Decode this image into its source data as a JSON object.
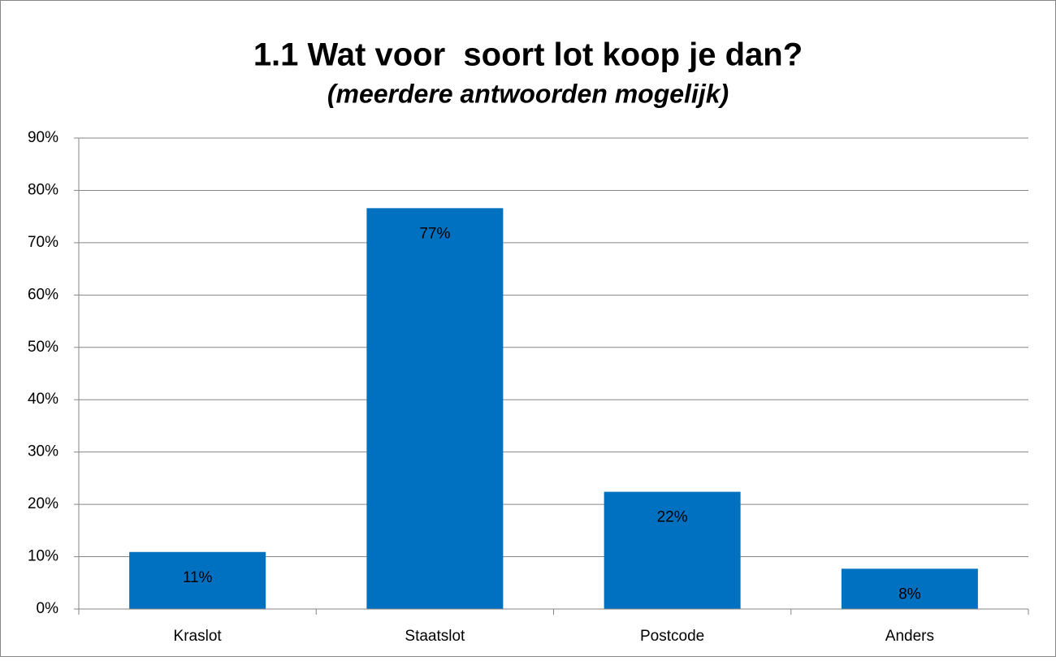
{
  "chart_data": {
    "type": "bar",
    "title": "1.1 Wat voor  soort lot koop je dan?",
    "subtitle": "(meerdere antwoorden mogelijk)",
    "categories": [
      "Kraslot",
      "Staatslot",
      "Postcode",
      "Anders"
    ],
    "values": [
      10.9,
      76.6,
      22.4,
      7.7
    ],
    "value_labels": [
      "11%",
      "77%",
      "22%",
      "8%"
    ],
    "color": "#0070c0",
    "ylim": [
      0,
      90
    ],
    "yticks": [
      {
        "value": 0,
        "label": "0%"
      },
      {
        "value": 10,
        "label": "10%"
      },
      {
        "value": 20,
        "label": "20%"
      },
      {
        "value": 30,
        "label": "30%"
      },
      {
        "value": 40,
        "label": "40%"
      },
      {
        "value": 50,
        "label": "50%"
      },
      {
        "value": 60,
        "label": "60%"
      },
      {
        "value": 70,
        "label": "70%"
      },
      {
        "value": 80,
        "label": "80%"
      },
      {
        "value": 90,
        "label": "90%"
      }
    ],
    "grid": true
  }
}
